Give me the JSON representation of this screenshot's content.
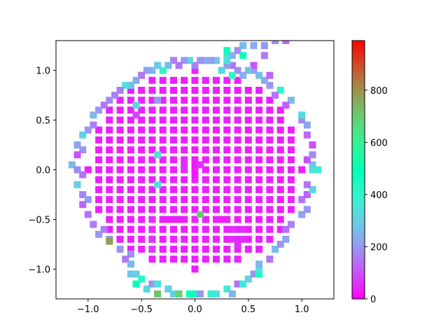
{
  "chart_data": {
    "type": "scatter",
    "title": "",
    "xlabel": "",
    "ylabel": "",
    "xlim": [
      -1.3,
      1.3
    ],
    "ylim": [
      -1.3,
      1.3
    ],
    "grid": false,
    "marker": "square",
    "colormap": "rainbow",
    "x_ticks": [
      -1.0,
      -0.5,
      0.0,
      0.5,
      1.0
    ],
    "x_tick_labels": [
      "−1.0",
      "−0.5",
      "0.0",
      "0.5",
      "1.0"
    ],
    "y_ticks": [
      -1.0,
      -0.5,
      0.0,
      0.5,
      1.0
    ],
    "y_tick_labels": [
      "−1.0",
      "−0.5",
      "0.0",
      "0.5",
      "1.0"
    ],
    "colorbar": {
      "range": [
        0,
        990
      ],
      "ticks": [
        0,
        200,
        400,
        600,
        800
      ],
      "tick_labels": [
        "0",
        "200",
        "400",
        "600",
        "800"
      ]
    },
    "grid_points": {
      "step": 0.1,
      "radius": 1.0,
      "value": 40
    },
    "points": [
      [
        -0.1,
        0.0,
        60
      ],
      [
        0.0,
        0.0,
        40
      ],
      [
        0.0,
        0.05,
        30
      ],
      [
        0.0,
        -0.05,
        30
      ],
      [
        -0.35,
        0.7,
        210
      ],
      [
        -0.55,
        0.65,
        310
      ],
      [
        -0.55,
        0.55,
        90
      ],
      [
        -0.35,
        0.15,
        320
      ],
      [
        -0.35,
        -0.15,
        330
      ],
      [
        -0.1,
        0.05,
        60
      ],
      [
        0.05,
        0.05,
        60
      ],
      [
        -0.4,
        -0.5,
        60
      ],
      [
        -0.3,
        -0.5,
        40
      ],
      [
        -0.25,
        -0.5,
        40
      ],
      [
        -0.15,
        -0.5,
        40
      ],
      [
        -0.1,
        -0.5,
        40
      ],
      [
        0.0,
        -0.5,
        40
      ],
      [
        0.1,
        -0.5,
        40
      ],
      [
        0.2,
        -0.5,
        40
      ],
      [
        0.25,
        -0.5,
        40
      ],
      [
        0.05,
        -0.45,
        700
      ],
      [
        -0.4,
        -0.6,
        60
      ],
      [
        -0.4,
        -0.7,
        60
      ],
      [
        -0.4,
        -0.8,
        70
      ],
      [
        0.35,
        -0.6,
        60
      ],
      [
        0.35,
        -0.7,
        60
      ],
      [
        0.45,
        -0.6,
        60
      ],
      [
        0.45,
        -0.7,
        60
      ],
      [
        0.4,
        -0.75,
        60
      ],
      [
        -0.85,
        -0.6,
        160
      ],
      [
        -0.8,
        -0.7,
        200
      ],
      [
        -0.8,
        -0.72,
        780
      ],
      [
        -0.7,
        -0.8,
        200
      ],
      [
        -0.6,
        -0.85,
        200
      ],
      [
        -0.65,
        -0.9,
        150
      ],
      [
        -0.6,
        -0.95,
        260
      ],
      [
        -0.55,
        -1.05,
        300
      ],
      [
        -0.6,
        -1.05,
        280
      ],
      [
        -0.5,
        -1.1,
        420
      ],
      [
        -0.55,
        -1.15,
        500
      ],
      [
        -0.45,
        -1.2,
        330
      ],
      [
        -0.4,
        -1.15,
        200
      ],
      [
        -0.35,
        -1.25,
        720
      ],
      [
        -0.35,
        -1.15,
        330
      ],
      [
        -0.25,
        -1.2,
        300
      ],
      [
        -0.2,
        -1.25,
        300
      ],
      [
        -0.15,
        -1.25,
        680
      ],
      [
        -0.05,
        -1.25,
        480
      ],
      [
        0.0,
        -1.25,
        450
      ],
      [
        0.05,
        -1.25,
        200
      ],
      [
        0.15,
        -1.25,
        400
      ],
      [
        0.2,
        -1.25,
        340
      ],
      [
        0.3,
        -1.2,
        360
      ],
      [
        0.35,
        -1.25,
        250
      ],
      [
        0.4,
        -1.15,
        150
      ],
      [
        0.45,
        -1.15,
        380
      ],
      [
        0.5,
        -1.1,
        300
      ],
      [
        0.55,
        -1.05,
        200
      ],
      [
        0.6,
        -1.05,
        460
      ],
      [
        0.6,
        -1.0,
        340
      ],
      [
        0.6,
        -0.95,
        250
      ],
      [
        0.7,
        -0.9,
        150
      ],
      [
        0.75,
        -0.8,
        260
      ],
      [
        0.8,
        -0.75,
        200
      ],
      [
        0.85,
        -0.7,
        220
      ],
      [
        0.85,
        -0.6,
        140
      ],
      [
        0.9,
        -0.55,
        170
      ],
      [
        1.0,
        -0.45,
        220
      ],
      [
        1.05,
        -0.4,
        200
      ],
      [
        1.0,
        -0.3,
        150
      ],
      [
        1.05,
        -0.25,
        120
      ],
      [
        1.1,
        -0.2,
        310
      ],
      [
        1.05,
        -0.15,
        150
      ],
      [
        1.1,
        0.0,
        340
      ],
      [
        1.1,
        0.05,
        280
      ],
      [
        1.15,
        0.0,
        370
      ],
      [
        1.05,
        0.1,
        100
      ],
      [
        1.1,
        0.15,
        180
      ],
      [
        1.1,
        0.25,
        100
      ],
      [
        1.05,
        0.35,
        130
      ],
      [
        1.05,
        0.45,
        230
      ],
      [
        1.0,
        0.5,
        180
      ],
      [
        1.0,
        0.55,
        330
      ],
      [
        0.9,
        0.7,
        250
      ],
      [
        0.85,
        0.65,
        120
      ],
      [
        0.8,
        0.8,
        420
      ],
      [
        0.75,
        0.75,
        150
      ],
      [
        0.7,
        0.85,
        200
      ],
      [
        0.65,
        0.9,
        230
      ],
      [
        0.7,
        0.95,
        130
      ],
      [
        0.6,
        0.95,
        270
      ],
      [
        0.55,
        1.0,
        220
      ],
      [
        0.55,
        1.05,
        110
      ],
      [
        0.5,
        1.0,
        280
      ],
      [
        0.45,
        0.95,
        230
      ],
      [
        0.4,
        1.0,
        190
      ],
      [
        0.35,
        1.05,
        150
      ],
      [
        0.35,
        0.95,
        410
      ],
      [
        0.3,
        1.05,
        200
      ],
      [
        0.25,
        1.0,
        320
      ],
      [
        0.3,
        1.1,
        350
      ],
      [
        0.3,
        1.15,
        360
      ],
      [
        0.3,
        1.2,
        470
      ],
      [
        0.35,
        1.15,
        250
      ],
      [
        0.4,
        1.2,
        180
      ],
      [
        0.45,
        1.15,
        470
      ],
      [
        0.45,
        1.25,
        260
      ],
      [
        0.55,
        1.25,
        230
      ],
      [
        0.65,
        1.25,
        200
      ],
      [
        0.65,
        1.15,
        160
      ],
      [
        0.75,
        1.3,
        180
      ],
      [
        0.85,
        1.3,
        130
      ],
      [
        0.2,
        1.1,
        280
      ],
      [
        0.15,
        1.1,
        200
      ],
      [
        0.1,
        1.1,
        230
      ],
      [
        0.05,
        1.1,
        190
      ],
      [
        0.0,
        1.05,
        170
      ],
      [
        -0.05,
        1.1,
        320
      ],
      [
        -0.1,
        1.1,
        200
      ],
      [
        -0.15,
        1.05,
        150
      ],
      [
        -0.2,
        1.1,
        160
      ],
      [
        -0.25,
        1.05,
        260
      ],
      [
        -0.3,
        1.0,
        410
      ],
      [
        -0.35,
        1.05,
        290
      ],
      [
        -0.4,
        1.0,
        260
      ],
      [
        -0.45,
        1.0,
        220
      ],
      [
        -0.5,
        0.95,
        150
      ],
      [
        -0.55,
        0.9,
        230
      ],
      [
        -0.6,
        0.85,
        260
      ],
      [
        -0.65,
        0.85,
        340
      ],
      [
        -0.7,
        0.8,
        160
      ],
      [
        -0.75,
        0.75,
        170
      ],
      [
        -0.8,
        0.7,
        180
      ],
      [
        -0.85,
        0.65,
        150
      ],
      [
        -0.9,
        0.6,
        200
      ],
      [
        -0.95,
        0.55,
        250
      ],
      [
        -0.95,
        0.45,
        160
      ],
      [
        -1.0,
        0.4,
        200
      ],
      [
        -1.05,
        0.35,
        310
      ],
      [
        -1.1,
        0.25,
        220
      ],
      [
        -1.05,
        0.2,
        200
      ],
      [
        -1.1,
        0.15,
        100
      ],
      [
        -1.15,
        0.05,
        260
      ],
      [
        -1.1,
        0.0,
        180
      ],
      [
        -1.05,
        -0.05,
        150
      ],
      [
        -1.1,
        -0.15,
        300
      ],
      [
        -1.05,
        -0.25,
        170
      ],
      [
        -1.0,
        -0.3,
        210
      ],
      [
        -1.05,
        -0.35,
        130
      ],
      [
        -1.0,
        -0.45,
        140
      ],
      [
        -0.95,
        -0.55,
        160
      ],
      [
        -0.9,
        -0.65,
        200
      ]
    ]
  }
}
